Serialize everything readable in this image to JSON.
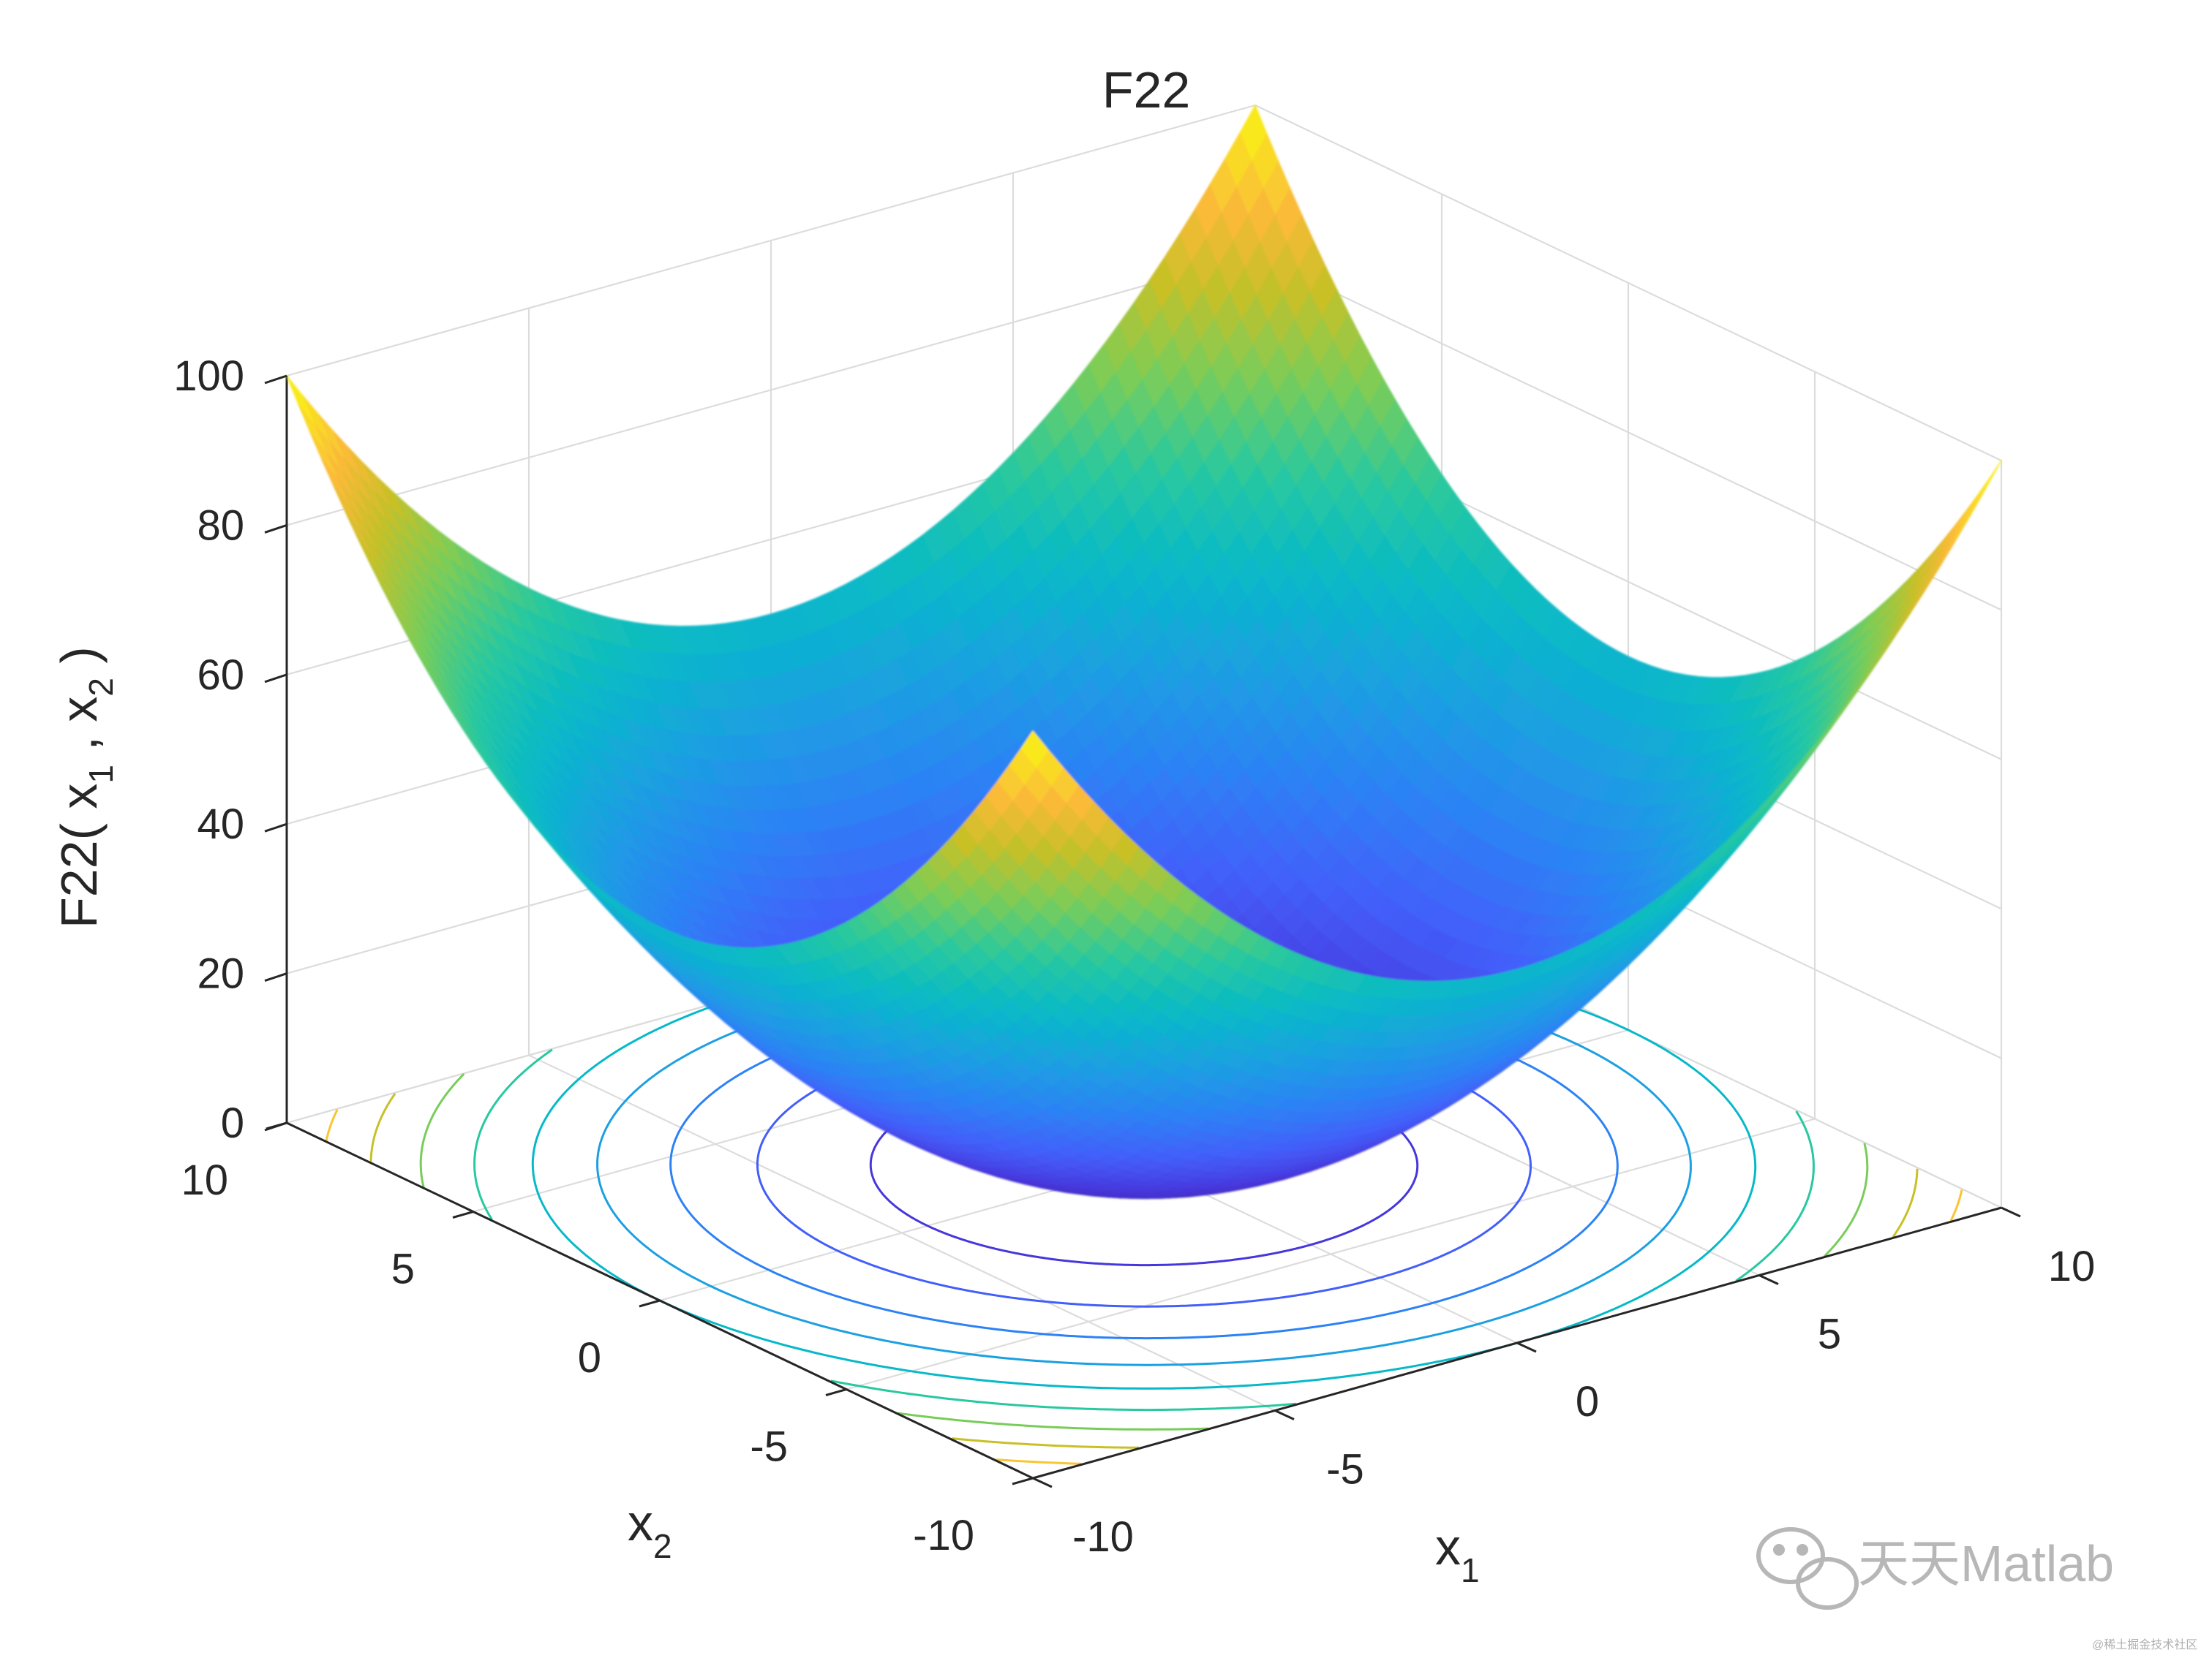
{
  "chart_data": {
    "type": "surface3d",
    "title": "F22",
    "xlabel": "x",
    "xlabel_sub": "1",
    "ylabel": "x",
    "ylabel_sub": "2",
    "zlabel": {
      "prefix": "F22( x",
      "sub1": "1",
      "mid": " , x",
      "sub2": "2",
      "suffix": " )"
    },
    "x_ticks": [
      "-10",
      "-5",
      "0",
      "5",
      "10"
    ],
    "y_ticks": [
      "-10",
      "-5",
      "0",
      "5",
      "10"
    ],
    "z_ticks": [
      "0",
      "20",
      "40",
      "60",
      "80",
      "100"
    ],
    "x_range": [
      -10,
      10
    ],
    "y_range": [
      -10,
      10
    ],
    "z_range": [
      0,
      100
    ],
    "grid": true,
    "colormap": "parula",
    "function": "z = (x1^2 + x2^2) / 2",
    "corner_values": [
      {
        "x1": -10,
        "x2": 10,
        "z": 100
      },
      {
        "x1": 10,
        "x2": -10,
        "z": 100
      },
      {
        "x1": -10,
        "x2": -10,
        "z": 100
      },
      {
        "x1": 10,
        "x2": 10,
        "z": 100
      }
    ],
    "min_value": {
      "x1": 0,
      "x2": 0,
      "z": 0
    },
    "contour_levels": [
      10,
      20,
      30,
      40,
      50,
      60,
      70,
      80,
      90
    ]
  },
  "watermark": {
    "text": "天天Matlab",
    "small_text": "@稀土掘金技术社区"
  }
}
